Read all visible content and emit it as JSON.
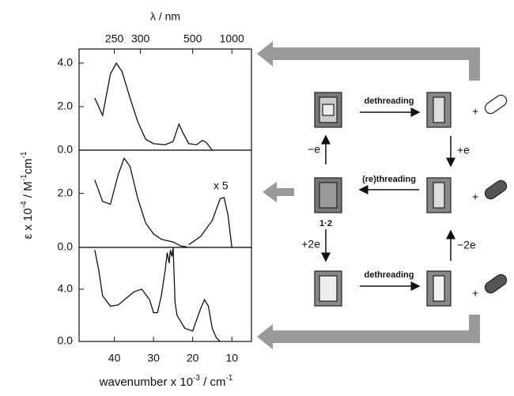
{
  "chart_data": [
    {
      "type": "line",
      "x2_label": "λ / nm",
      "x2ticks": [
        250,
        300,
        500,
        1000
      ],
      "xlim": [
        49,
        5
      ],
      "ylim": [
        0,
        4.65
      ],
      "yticks": [
        {
          "value": 0,
          "label": "0.0"
        },
        {
          "value": 2,
          "label": "2.0"
        },
        {
          "value": 4,
          "label": "4.0"
        }
      ],
      "x": [
        45,
        43,
        41,
        39.5,
        38,
        36,
        34,
        32,
        30,
        27,
        25,
        23.5,
        22.5,
        21,
        19,
        17.5,
        16.5,
        15
      ],
      "values": [
        2.4,
        1.6,
        3.5,
        4.0,
        3.6,
        2.4,
        1.3,
        0.5,
        0.3,
        0.25,
        0.4,
        1.2,
        0.8,
        0.3,
        0.25,
        0.45,
        0.35,
        0
      ]
    },
    {
      "type": "line",
      "y_label": [
        "ε x 10",
        "-4",
        " / M",
        "-1",
        "cm",
        "-1"
      ],
      "annotation": "x 5",
      "xlim": [
        49,
        5
      ],
      "ylim": [
        0,
        3.6
      ],
      "yticks": [
        {
          "value": 0,
          "label": "0.0"
        },
        {
          "value": 2,
          "label": "2.0"
        }
      ],
      "x": [
        45,
        43,
        41,
        39,
        37.5,
        36,
        34,
        32,
        30,
        28,
        25,
        23,
        21.5,
        21.2,
        21,
        18,
        15,
        13,
        12,
        11,
        10
      ],
      "values": [
        2.5,
        1.7,
        1.6,
        2.7,
        3.3,
        3.0,
        1.8,
        0.9,
        0.5,
        0.3,
        0.2,
        0.05,
        0.02,
        null,
        0.1,
        0.4,
        1.0,
        1.8,
        1.85,
        1.2,
        0
      ]
    },
    {
      "type": "line",
      "x_label": [
        "wavenumber x 10",
        "-3",
        " / cm",
        "-1"
      ],
      "xlim": [
        49,
        5
      ],
      "ylim": [
        0,
        7.2
      ],
      "xticks": [
        40,
        30,
        20,
        10
      ],
      "yticks": [
        {
          "value": 0,
          "label": "0.0"
        },
        {
          "value": 4,
          "label": "4.0"
        }
      ],
      "x": [
        45,
        44,
        43,
        41,
        39,
        37,
        35,
        33,
        31,
        30,
        29,
        28,
        27,
        26.5,
        26,
        25.7,
        25.3,
        25,
        24.5,
        24,
        22,
        20,
        18,
        17,
        16,
        15,
        14,
        13
      ],
      "values": [
        7.0,
        5.5,
        3.5,
        2.7,
        2.8,
        3.3,
        3.8,
        4.0,
        3.2,
        2.2,
        2.2,
        3.5,
        5.5,
        6.8,
        6.0,
        7.0,
        6.5,
        7.2,
        3.0,
        2.0,
        1.0,
        0.8,
        2.5,
        3.2,
        2.7,
        1.0,
        0.3,
        0
      ]
    }
  ],
  "scheme": {
    "top_arrow": "dethreading",
    "right_top": "+e",
    "middle_arrow": "(re)threading",
    "left_top": "−e",
    "complex": "1·2",
    "left_bottom": "+2e",
    "bottom_arrow": "dethreading",
    "right_bottom": "−2e",
    "plus": [
      "+",
      "+",
      "+"
    ]
  }
}
